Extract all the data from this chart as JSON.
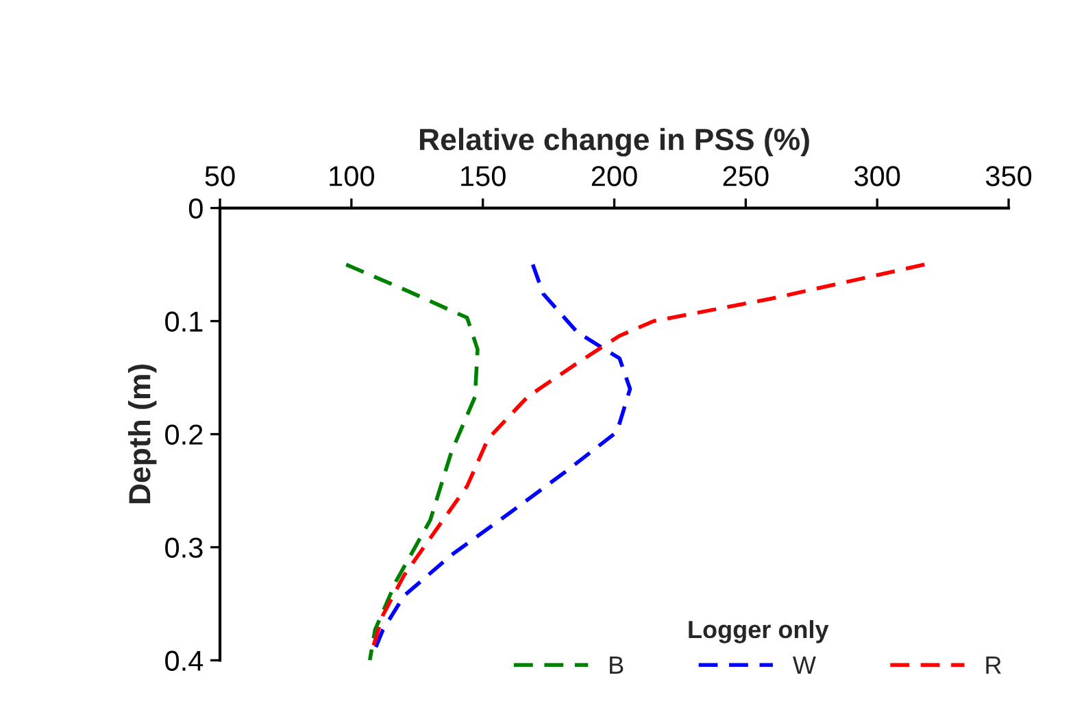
{
  "chart_data": {
    "type": "line",
    "xlabel": "Relative change in PSS (%)",
    "ylabel": "Depth (m)",
    "legend_title": "Logger only",
    "xlim": [
      50,
      350
    ],
    "xticks": [
      50,
      100,
      150,
      200,
      250,
      300,
      350
    ],
    "ylim": [
      0.4,
      0
    ],
    "yticks": [
      0,
      0.1,
      0.2,
      0.3,
      0.4
    ],
    "grid": false,
    "legend": "bottom right",
    "line_style": "dashed",
    "marker": "none",
    "series": [
      {
        "name": "B",
        "color": "#008000",
        "x": [
          98,
          122,
          144,
          148,
          147,
          138,
          130,
          117,
          109,
          107
        ],
        "values": [
          0.05,
          0.074,
          0.097,
          0.125,
          0.167,
          0.216,
          0.276,
          0.33,
          0.373,
          0.4
        ]
      },
      {
        "name": "W",
        "color": "#0000ff",
        "x": [
          169,
          173,
          186,
          202,
          206,
          201,
          181,
          160,
          138,
          120,
          112,
          109
        ],
        "values": [
          0.05,
          0.076,
          0.11,
          0.133,
          0.16,
          0.198,
          0.234,
          0.27,
          0.307,
          0.343,
          0.373,
          0.39
        ]
      },
      {
        "name": "R",
        "color": "#ff0000",
        "x": [
          318,
          260,
          215,
          202,
          186,
          167,
          152,
          144,
          133,
          120,
          112,
          108
        ],
        "values": [
          0.05,
          0.08,
          0.1,
          0.113,
          0.137,
          0.167,
          0.204,
          0.246,
          0.282,
          0.325,
          0.36,
          0.39
        ]
      }
    ]
  }
}
